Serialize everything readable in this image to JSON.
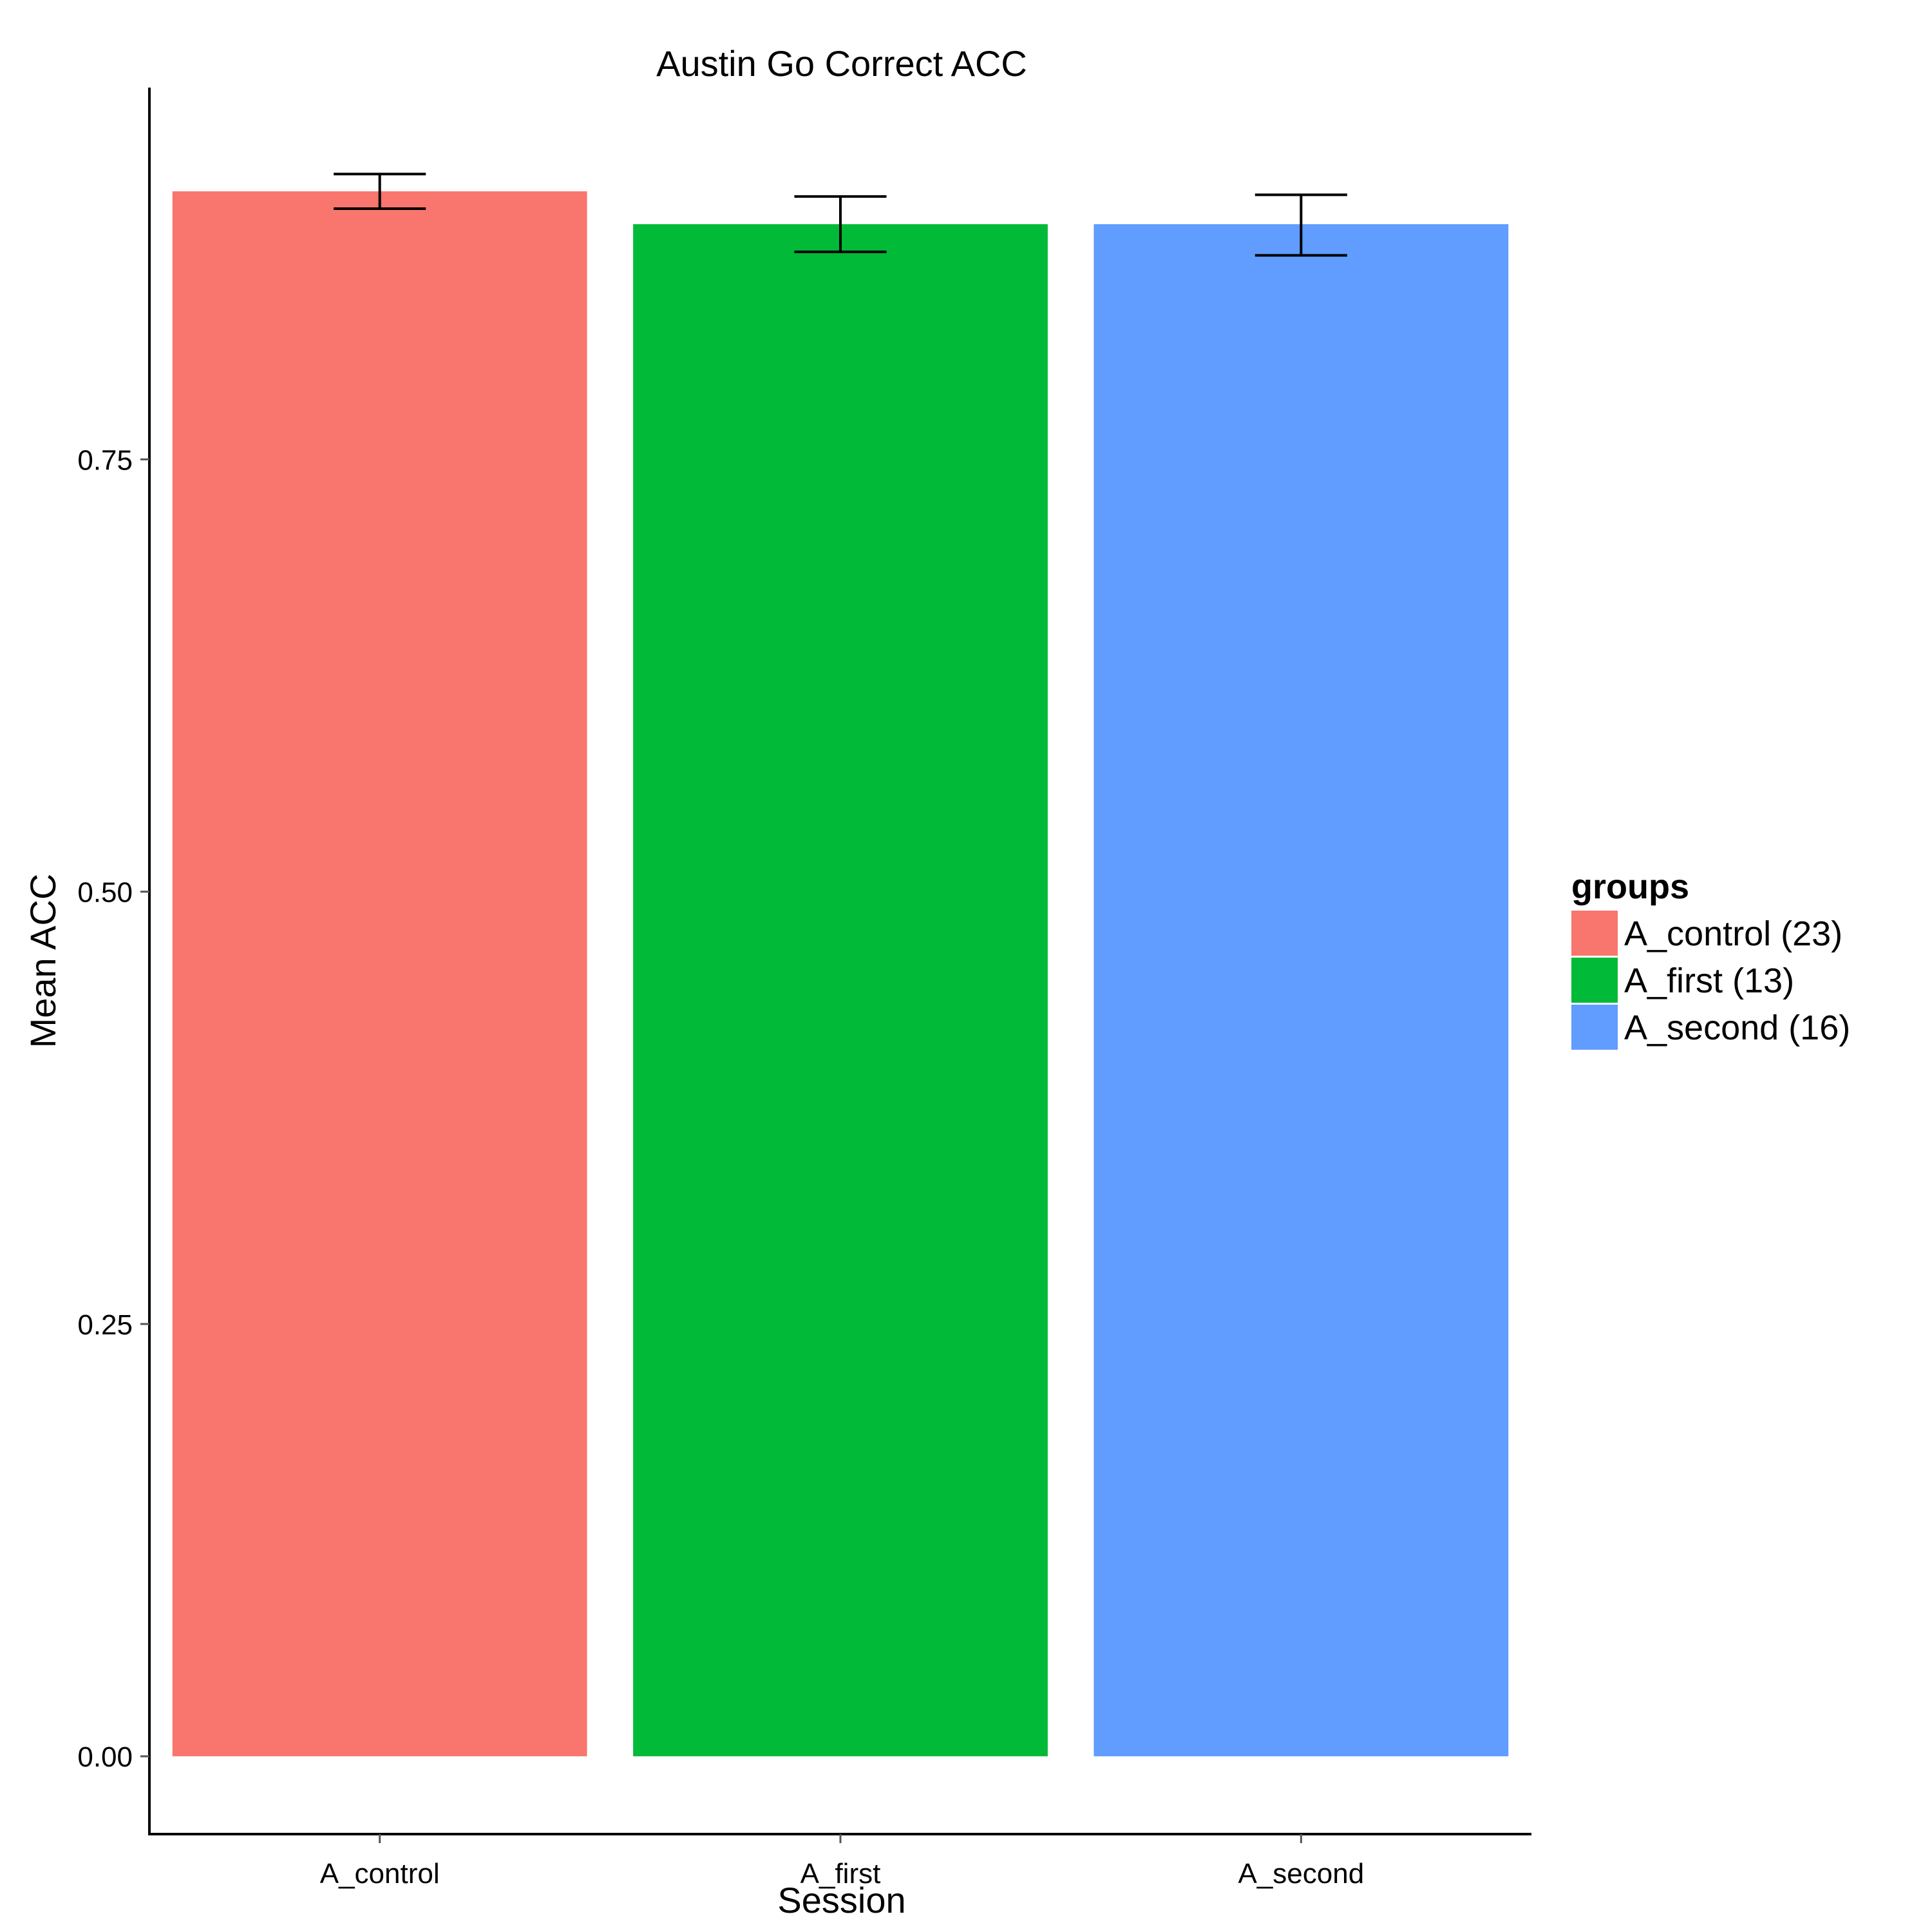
{
  "chart_data": {
    "type": "bar",
    "title": "Austin Go Correct ACC",
    "xlabel": "Session",
    "ylabel": "Mean ACC",
    "categories": [
      "A_control",
      "A_first",
      "A_second"
    ],
    "values": [
      0.905,
      0.886,
      0.886
    ],
    "error_low": [
      0.895,
      0.87,
      0.868
    ],
    "error_high": [
      0.915,
      0.902,
      0.903
    ],
    "ylim": [
      -0.045,
      0.965
    ],
    "yticks": [
      0.0,
      0.25,
      0.5,
      0.75
    ],
    "ytick_labels": [
      "0.00",
      "0.25",
      "0.50",
      "0.75"
    ],
    "colors": [
      "#F8766D",
      "#00BA38",
      "#619CFF"
    ],
    "grid": false,
    "legend": {
      "title": "groups",
      "position": "right",
      "entries": [
        "A_control (23)",
        "A_first (13)",
        "A_second (16)"
      ]
    }
  }
}
